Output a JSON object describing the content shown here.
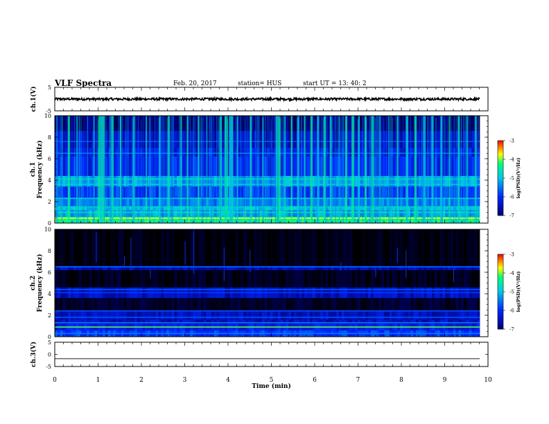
{
  "header": {
    "title": "VLF Spectra",
    "date": "Feb. 20, 2017",
    "station": "station= HUS",
    "start_ut": "start  UT =  13: 40: 2"
  },
  "chart_data": [
    {
      "type": "line",
      "panel": "ch1-waveform",
      "ylabel": "ch.1(V)",
      "ylim": [
        -5,
        5
      ],
      "yticks": [
        "5",
        "-5"
      ],
      "xlim": [
        0,
        10
      ],
      "series": [
        {
          "level": 0,
          "noise_amplitude": 0.5,
          "color": "#000000"
        }
      ]
    },
    {
      "type": "heatmap",
      "panel": "ch1-spectrogram",
      "ylabel": "Frequency (kHz)",
      "channel_label": "ch.1",
      "ylim": [
        0,
        10
      ],
      "yticks": [
        "0",
        "2",
        "4",
        "6",
        "8",
        "10"
      ],
      "xlim": [
        0,
        10
      ],
      "colorbar": {
        "label": "log(PSD)(V²/Hz)",
        "range": [
          -7,
          -3
        ],
        "ticks": [
          "-3",
          "-4",
          "-5",
          "-6",
          "-7"
        ]
      },
      "intensity": "high",
      "burst_times_min": [
        0.3,
        0.5,
        0.9,
        1.0,
        1.05,
        1.1,
        1.3,
        1.5,
        1.8,
        2.1,
        2.4,
        2.6,
        2.9,
        3.05,
        3.3,
        3.5,
        3.8,
        3.92,
        3.97,
        4.02,
        4.08,
        4.2,
        4.5,
        4.8,
        5.1,
        5.15,
        5.3,
        5.45,
        5.6,
        5.75,
        5.9,
        6.05,
        6.2,
        6.35,
        6.55,
        6.7,
        6.85,
        7.0,
        7.15,
        7.3,
        7.5,
        7.7,
        7.9,
        8.1,
        8.3,
        8.5,
        8.7,
        8.9,
        9.1,
        9.3,
        9.5,
        9.7
      ]
    },
    {
      "type": "heatmap",
      "panel": "ch2-spectrogram",
      "ylabel": "Frequency (kHz)",
      "channel_label": "ch.2",
      "ylim": [
        0,
        10
      ],
      "yticks": [
        "0",
        "2",
        "4",
        "6",
        "8",
        "10"
      ],
      "xlim": [
        0,
        10
      ],
      "colorbar": {
        "label": "log(PSD)(V²/Hz)",
        "range": [
          -7,
          -3
        ],
        "ticks": [
          "-3",
          "-4",
          "-5",
          "-6",
          "-7"
        ]
      },
      "intensity": "low",
      "burst_times_min": [
        0.95,
        1.6,
        1.75,
        2.2,
        3.0,
        3.2,
        3.9,
        4.5,
        6.6,
        7.0,
        7.4,
        7.9,
        8.1,
        9.2
      ]
    },
    {
      "type": "line",
      "panel": "ch3-waveform",
      "ylabel": "ch.3(V)",
      "ylim": [
        -5,
        5
      ],
      "yticks": [
        "5",
        "0",
        "-5"
      ],
      "xlim": [
        0,
        10
      ],
      "series": [
        {
          "level": -1.8,
          "noise_amplitude": 0,
          "color": "#000000"
        }
      ]
    }
  ],
  "xaxis": {
    "label": "Time (min)",
    "ticks": [
      "0",
      "1",
      "2",
      "3",
      "4",
      "5",
      "6",
      "7",
      "8",
      "9",
      "10"
    ]
  }
}
